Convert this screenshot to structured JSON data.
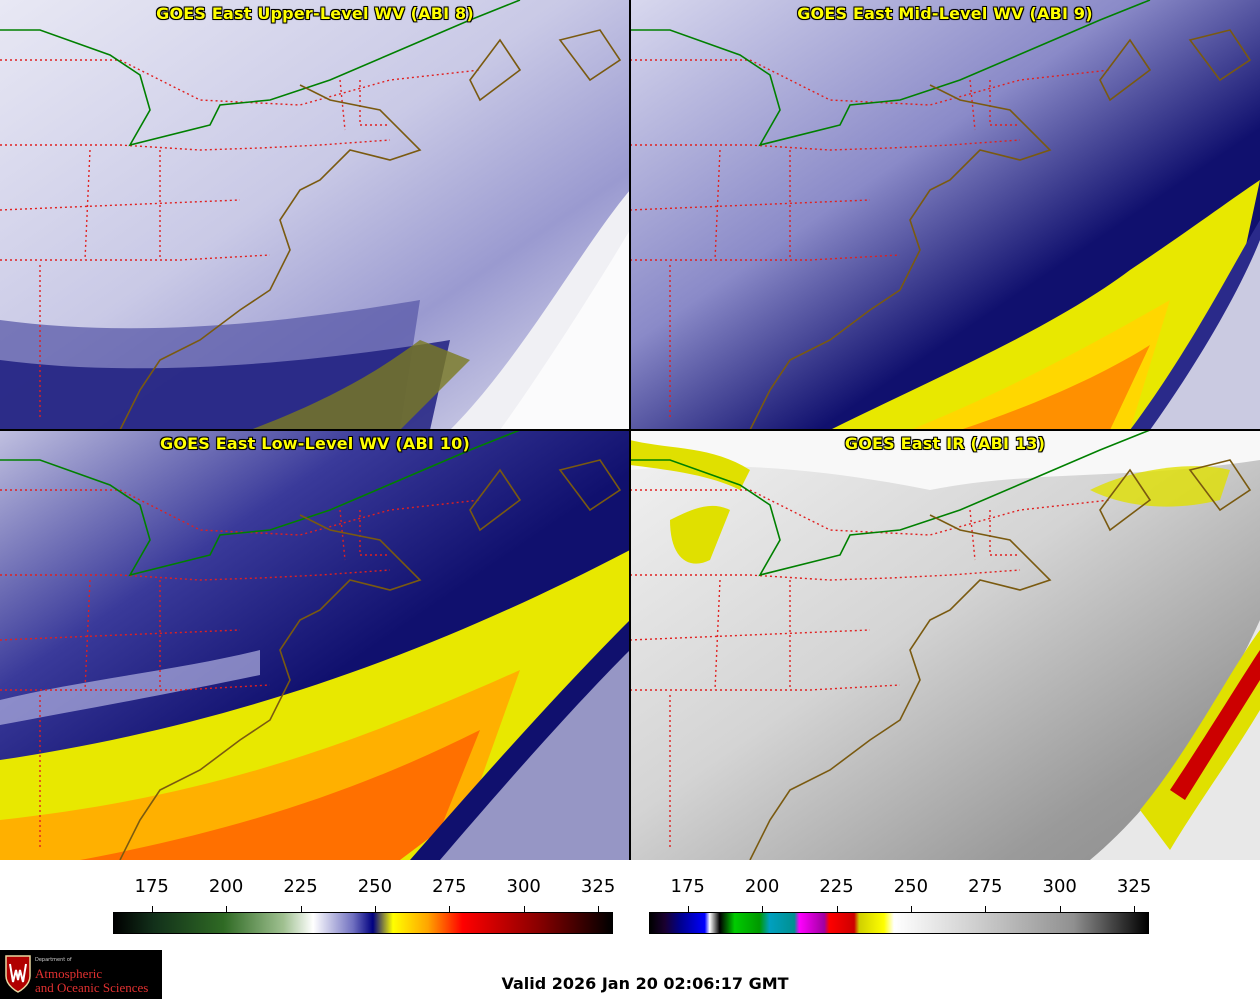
{
  "panels": [
    {
      "title": "GOES East Upper-Level WV (ABI 8)",
      "product": "upper-wv"
    },
    {
      "title": "GOES East Mid-Level WV (ABI 9)",
      "product": "mid-wv"
    },
    {
      "title": "GOES East Low-Level WV (ABI 10)",
      "product": "low-wv"
    },
    {
      "title": "GOES East IR (ABI 13)",
      "product": "ir"
    }
  ],
  "colorbars": [
    {
      "name": "wv",
      "ticks": [
        "175",
        "200",
        "225",
        "250",
        "275",
        "300",
        "325"
      ],
      "range": [
        162,
        330
      ],
      "stops": [
        "#000000",
        "#0d2a0d",
        "#2f5f24",
        "#8db27d",
        "#ffffff",
        "#5a5aa8",
        "#000080",
        "#ffff00",
        "#ffa500",
        "#ff0000",
        "#8b0000",
        "#000000"
      ]
    },
    {
      "name": "ir",
      "ticks": [
        "175",
        "200",
        "225",
        "250",
        "275",
        "300",
        "325"
      ],
      "range": [
        162,
        330
      ],
      "stops": [
        "#000000",
        "#00008b",
        "#0000ff",
        "#ffffff",
        "#000000",
        "#00ff00",
        "#00aa00",
        "#00a0a0",
        "#ff00ff",
        "#ff0000",
        "#ffff00",
        "#ffffff",
        "#888888",
        "#000000"
      ]
    }
  ],
  "logo": {
    "department": "Department of",
    "line1": "Atmospheric",
    "line2": "and Oceanic Sciences"
  },
  "valid_time": "Valid 2026 Jan 20 02:06:17 GMT",
  "colors": {
    "state_border": "#e02020",
    "coastline": "#7a5a10",
    "us_canada_border": "#008000",
    "title_text": "#ffff00"
  }
}
